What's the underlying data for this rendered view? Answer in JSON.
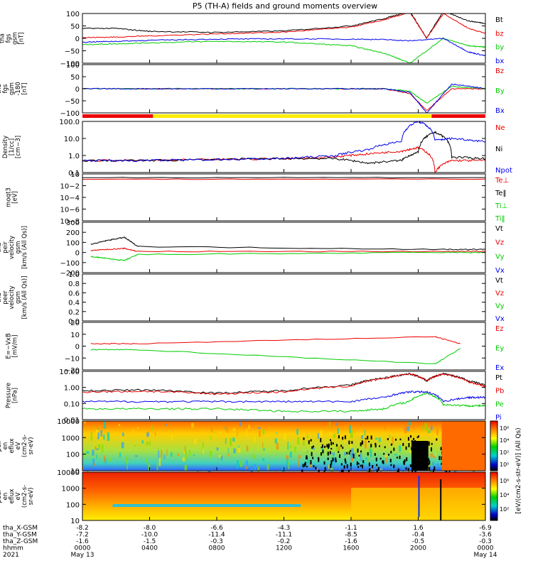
{
  "title": "P5 (TH-A) fields and ground moments overview",
  "colors": {
    "black": "#000000",
    "red": "#ee0000",
    "green": "#00cc00",
    "blue": "#0000ee",
    "yellow": "#ffee00",
    "orange": "#ff8800"
  },
  "panels": [
    {
      "id": "fgs-gsm",
      "ylabel": "tha\nfgs\ngsm\n[nT]",
      "ticks": [
        "100",
        "50",
        "0",
        "−50",
        "−100"
      ],
      "legend": [
        [
          "Bt",
          "black"
        ],
        [
          "bz",
          "red"
        ],
        [
          "by",
          "green"
        ],
        [
          "bx",
          "blue"
        ]
      ]
    },
    {
      "id": "fgs-gse",
      "ylabel": "tha\nfgs\ngsm\n-180\n[nT]",
      "ticks": [
        "100",
        "50",
        "0",
        "−50",
        "−100"
      ],
      "legend": [
        [
          "Bz",
          "red"
        ],
        [
          "By",
          "green"
        ],
        [
          "Bx",
          "blue"
        ]
      ]
    },
    {
      "id": "density",
      "ylabel": "Density\n[1/cc]\n[cm−3]",
      "ticks": [
        "100.0",
        "10.0",
        "1.0",
        "0.1"
      ],
      "legend": [
        [
          "Ne",
          "red"
        ],
        [
          "Ni",
          "black"
        ],
        [
          "Npot",
          "blue"
        ]
      ]
    },
    {
      "id": "temperature",
      "ylabel": "moqt3\n[eV]",
      "ticks": [
        "10",
        "10−2",
        "10−4",
        "10−6",
        "10−8"
      ],
      "legend": [
        [
          "Te⊥",
          "red"
        ],
        [
          "Te‖",
          "black"
        ],
        [
          "Ti⊥",
          "green"
        ],
        [
          "Ti‖",
          "green"
        ]
      ]
    },
    {
      "id": "peir-velocity",
      "ylabel": "tha\npeir\nvelocity\ngsm\n[km/s (All Qs)]",
      "ticks": [
        "300",
        "200",
        "100",
        "0",
        "−100",
        "−200"
      ],
      "legend": [
        [
          "Vt",
          "black"
        ],
        [
          "Vz",
          "red"
        ],
        [
          "Vy",
          "green"
        ],
        [
          "Vx",
          "blue"
        ]
      ]
    },
    {
      "id": "peer-velocity",
      "ylabel": "tha\npeer\nvelocity\ngsm\n[km/s (All Qs)]",
      "ticks": [
        "1.0",
        "0.8",
        "0.6",
        "0.4",
        "0.2",
        "0.0"
      ],
      "legend": [
        [
          "Vt",
          "black"
        ],
        [
          "Vz",
          "red"
        ],
        [
          "Vy",
          "green"
        ],
        [
          "Vx",
          "blue"
        ]
      ]
    },
    {
      "id": "efield",
      "ylabel": "E=−VxB\n[mV/m]",
      "ticks": [
        "20",
        "10",
        "0",
        "−10",
        "−20"
      ],
      "legend": [
        [
          "Ez",
          "red"
        ],
        [
          "Ey",
          "green"
        ],
        [
          "Ex",
          "blue"
        ]
      ]
    },
    {
      "id": "pressure",
      "ylabel": "Pressure\n[nPa]",
      "ticks": [
        "10.00",
        "1.00",
        "0.10",
        "0.01"
      ],
      "legend": [
        [
          "Pt",
          "black"
        ],
        [
          "Pb",
          "red"
        ],
        [
          "Pe",
          "green"
        ],
        [
          "Pi",
          "blue"
        ]
      ]
    },
    {
      "id": "peir-eflux",
      "ylabel": "tha\npeir\nen\neflux\neV\n(cm2-s-\nsr-eV)",
      "ticks": [
        "10000",
        "1000",
        "100",
        "10"
      ],
      "legend": []
    },
    {
      "id": "peer-eflux",
      "ylabel": "tha\npeer\nen\neflux\neV\n(cm2-s-\nsr-eV)",
      "ticks": [
        "10000",
        "1000",
        "100",
        "10"
      ],
      "legend": []
    }
  ],
  "colorbar": {
    "label": "[eV/(cm2-s-str-eV)]  (All Qs)",
    "upper_ticks": [
      "10⁶",
      "10⁴",
      "10²",
      "10⁰"
    ],
    "lower_ticks": [
      "10⁶",
      "10⁴",
      "10²"
    ]
  },
  "xaxis": {
    "row_labels": [
      "tha_X-GSM",
      "tha_Y-GSM",
      "tha_Z-GSM",
      "hhmm",
      "2021"
    ],
    "ticks": [
      {
        "x": "-8.2",
        "y": "-7.2",
        "z": "-1.6",
        "hhmm": "0000",
        "date": "May 13"
      },
      {
        "x": "-8.0",
        "y": "-10.0",
        "z": "-1.5",
        "hhmm": "0400",
        "date": ""
      },
      {
        "x": "-6.6",
        "y": "-11.4",
        "z": "-0.3",
        "hhmm": "0800",
        "date": ""
      },
      {
        "x": "-4.3",
        "y": "-11.1",
        "z": "-0.2",
        "hhmm": "1200",
        "date": ""
      },
      {
        "x": "-1.1",
        "y": "-8.5",
        "z": "-1.6",
        "hhmm": "1600",
        "date": ""
      },
      {
        "x": "1.6",
        "y": "-0.4",
        "z": "-0.5",
        "hhmm": "2000",
        "date": ""
      },
      {
        "x": "-6.9",
        "y": "-3.6",
        "z": "-0.3",
        "hhmm": "0000",
        "date": "May 14"
      }
    ]
  },
  "chart_data": {
    "type": "line",
    "title": "P5 (TH-A) fields and ground moments overview",
    "x_unit": "hhmm (UT)",
    "x_range": [
      "2021-05-13 00:00",
      "2021-05-14 00:00"
    ],
    "panels": [
      {
        "name": "tha fgs gsm [nT]",
        "ylim": [
          -100,
          100
        ],
        "series": [
          {
            "name": "Bt",
            "color": "black",
            "t": [
              0,
              2,
              4,
              8,
              12,
              16,
              18,
              19.5,
              20.5,
              21.5,
              23,
              24
            ],
            "v": [
              40,
              40,
              28,
              24,
              30,
              50,
              80,
              110,
              0,
              110,
              70,
              60
            ]
          },
          {
            "name": "bz",
            "color": "red",
            "t": [
              0,
              2,
              4,
              8,
              12,
              16,
              18,
              19.5,
              20.5,
              21.5,
              23,
              24
            ],
            "v": [
              3,
              5,
              10,
              18,
              25,
              45,
              75,
              105,
              0,
              100,
              40,
              20
            ]
          },
          {
            "name": "by",
            "color": "green",
            "t": [
              0,
              2,
              4,
              8,
              12,
              16,
              18,
              19.5,
              21.5,
              23,
              24
            ],
            "v": [
              -25,
              -22,
              -18,
              -12,
              -15,
              -30,
              -60,
              -100,
              0,
              -30,
              -35
            ]
          },
          {
            "name": "bx",
            "color": "blue",
            "t": [
              0,
              2,
              4,
              8,
              12,
              16,
              18,
              19.5,
              21.5,
              23,
              24
            ],
            "v": [
              -15,
              -12,
              -8,
              -3,
              -2,
              -3,
              -5,
              -10,
              0,
              -55,
              -70
            ]
          }
        ]
      },
      {
        "name": "tha fgs gsm -180 [nT]",
        "ylim": [
          -100,
          100
        ],
        "series": [
          {
            "name": "Bz",
            "color": "red",
            "t": [
              0,
              4,
              8,
              12,
              16,
              18,
              19.5,
              20.5,
              22,
              24
            ],
            "v": [
              0,
              0,
              0,
              0,
              0,
              0,
              -20,
              -90,
              0,
              0
            ]
          },
          {
            "name": "By",
            "color": "green",
            "t": [
              0,
              4,
              8,
              12,
              16,
              18,
              19.5,
              20.5,
              22,
              24
            ],
            "v": [
              0,
              0,
              0,
              0,
              0,
              0,
              -10,
              -60,
              10,
              0
            ]
          },
          {
            "name": "Bx",
            "color": "blue",
            "t": [
              0,
              4,
              8,
              12,
              16,
              18,
              19.5,
              20.5,
              22,
              24
            ],
            "v": [
              0,
              0,
              0,
              0,
              0,
              0,
              -15,
              -100,
              20,
              0
            ]
          }
        ]
      },
      {
        "name": "Density [1/cc]",
        "yscale": "log",
        "ylim": [
          0.05,
          100
        ],
        "series": [
          {
            "name": "Ne",
            "color": "red",
            "t": [
              0,
              4,
              8,
              12,
              15,
              17,
              19,
              20,
              21,
              22,
              24
            ],
            "v": [
              0.3,
              0.3,
              0.35,
              0.4,
              0.5,
              0.8,
              1.2,
              2,
              0.05,
              0.3,
              0.3
            ]
          },
          {
            "name": "Ni",
            "color": "black",
            "t": [
              0,
              4,
              8,
              12,
              15,
              17,
              19,
              20,
              21,
              22,
              24
            ],
            "v": [
              0.3,
              0.3,
              0.35,
              0.4,
              0.4,
              0.2,
              0.3,
              1,
              20,
              0.5,
              0.4
            ]
          },
          {
            "name": "Npot",
            "color": "blue",
            "t": [
              0,
              4,
              8,
              12,
              15,
              17,
              19,
              20,
              21,
              22,
              24
            ],
            "v": [
              0.3,
              0.3,
              0.35,
              0.4,
              0.6,
              1.5,
              5,
              100,
              6,
              8,
              5
            ]
          }
        ]
      },
      {
        "name": "moqt3 [eV]",
        "yscale": "log",
        "ylim": [
          1e-08,
          10
        ],
        "series": [
          {
            "name": "Te⊥",
            "color": "red",
            "t": [
              0,
              24
            ],
            "v": [
              1,
              1
            ]
          },
          {
            "name": "Te‖",
            "color": "black",
            "t": [
              0,
              24
            ],
            "v": [
              2,
              2
            ]
          }
        ]
      },
      {
        "name": "tha peir velocity gsm [km/s]",
        "ylim": [
          -200,
          300
        ],
        "series": [
          {
            "name": "Vt",
            "color": "black",
            "t": [
              0.5,
              1.5,
              2.5,
              3.3,
              21.5,
              24
            ],
            "v": [
              80,
              120,
              150,
              60,
              30,
              30
            ]
          },
          {
            "name": "Vz",
            "color": "red",
            "t": [
              0.5,
              1.5,
              2.5,
              3.3,
              21.5,
              24
            ],
            "v": [
              20,
              30,
              40,
              10,
              10,
              10
            ]
          },
          {
            "name": "Vy",
            "color": "green",
            "t": [
              0.5,
              1.5,
              2.5,
              3.3,
              21.5,
              24
            ],
            "v": [
              -40,
              -60,
              -80,
              -20,
              0,
              0
            ]
          }
        ]
      },
      {
        "name": "tha peer velocity gsm [km/s]",
        "ylim": [
          0,
          1
        ],
        "series": []
      },
      {
        "name": "E=-VxB [mV/m]",
        "ylim": [
          -20,
          20
        ],
        "series": [
          {
            "name": "Ez",
            "color": "red",
            "t": [
              0.5,
              3.3,
              21,
              22.5
            ],
            "v": [
              2,
              2,
              8,
              2
            ]
          },
          {
            "name": "Ey",
            "color": "green",
            "t": [
              0.5,
              3.3,
              21,
              22.5
            ],
            "v": [
              -3,
              -3,
              -15,
              -2
            ]
          }
        ]
      },
      {
        "name": "Pressure [nPa]",
        "yscale": "log",
        "ylim": [
          0.005,
          15
        ],
        "series": [
          {
            "name": "Pt",
            "color": "black",
            "t": [
              0,
              4,
              8,
              12,
              16,
              18,
              19.5,
              20.5,
              21.5,
              23,
              24
            ],
            "v": [
              0.6,
              0.7,
              0.4,
              0.6,
              1.5,
              5,
              10,
              3,
              10,
              3,
              1.5
            ]
          },
          {
            "name": "Pb",
            "color": "red",
            "t": [
              0,
              4,
              8,
              12,
              16,
              18,
              19.5,
              20.5,
              21.5,
              23,
              24
            ],
            "v": [
              0.5,
              0.55,
              0.35,
              0.5,
              1.3,
              4.5,
              10,
              3,
              10,
              2.5,
              1.2
            ]
          },
          {
            "name": "Pe",
            "color": "green",
            "t": [
              0,
              4,
              8,
              12,
              16,
              18,
              19.5,
              20.5,
              21.5,
              23,
              24
            ],
            "v": [
              0.03,
              0.03,
              0.03,
              0.02,
              0.02,
              0.03,
              0.1,
              0.4,
              0.06,
              0.05,
              0.05
            ]
          },
          {
            "name": "Pi",
            "color": "blue",
            "t": [
              0,
              4,
              8,
              12,
              16,
              18,
              19.5,
              20.5,
              21.5,
              23,
              24
            ],
            "v": [
              0.1,
              0.1,
              0.1,
              0.1,
              0.1,
              0.2,
              0.5,
              0.5,
              0.1,
              0.2,
              0.2
            ]
          }
        ]
      },
      {
        "name": "tha peir en eflux",
        "type": "heatmap",
        "ylim": [
          5,
          30000
        ],
        "yscale": "log"
      },
      {
        "name": "tha peer en eflux",
        "type": "heatmap",
        "ylim": [
          5,
          30000
        ],
        "yscale": "log"
      }
    ]
  }
}
